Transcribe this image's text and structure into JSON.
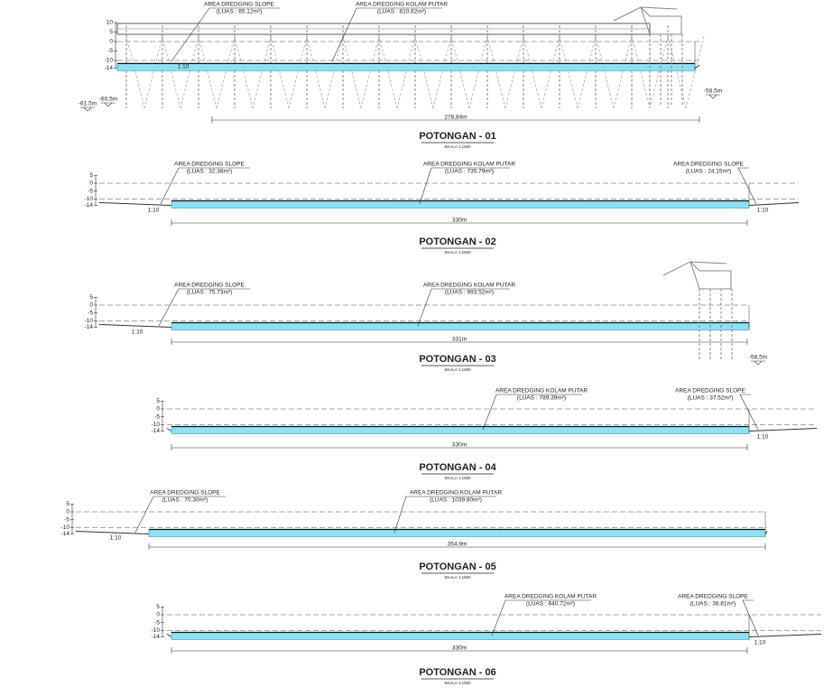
{
  "sections": [
    {
      "elevations": [
        "10",
        "5",
        "0",
        "-5",
        "-10",
        "-14"
      ],
      "annotations": [
        {
          "title": "AREA DREDGING SLOPE",
          "area": "(LUAS : 65.12m²)"
        },
        {
          "title": "AREA DREDGING KOLAM PUTAR",
          "area": "(LUAS : 810,62m²)"
        }
      ],
      "slopes": [
        "1:10"
      ],
      "depths": [
        "-61,5m",
        "-60,5m",
        "-58,5m"
      ],
      "dimension": "278,84m",
      "title": "POTONGAN - 01",
      "scale": "SKALA 1:1500"
    },
    {
      "elevations": [
        "5",
        "0",
        "-5",
        "-10",
        "-14"
      ],
      "annotations": [
        {
          "title": "AREA DREDGING SLOPE",
          "area": "(LUAS : 32.38m²)"
        },
        {
          "title": "AREA DREDGING KOLAM PUTAR",
          "area": "(LUAS : 735.79m²)"
        },
        {
          "title": "AREA DREDGING SLOPE",
          "area": "(LUAS : 24.15m²)"
        }
      ],
      "slopes": [
        "1:10",
        "1:10"
      ],
      "depths": [],
      "dimension": "330m",
      "title": "POTONGAN - 02",
      "scale": "SKALA 1:1500"
    },
    {
      "elevations": [
        "5",
        "0",
        "-5",
        "-10",
        "-14"
      ],
      "annotations": [
        {
          "title": "AREA DREDGING SLOPE",
          "area": "(LUAS : 75.73m²)"
        },
        {
          "title": "AREA DREDGING KOLAM PUTAR",
          "area": "(LUAS : 993.52m²)"
        }
      ],
      "slopes": [
        "1:10"
      ],
      "depths": [
        "-58,5m"
      ],
      "dimension": "331m",
      "title": "POTONGAN - 03",
      "scale": "SKALA 1:1500"
    },
    {
      "elevations": [
        "5",
        "0",
        "-5",
        "-10",
        "-14"
      ],
      "annotations": [
        {
          "title": "AREA DREDGING KOLAM PUTAR",
          "area": "(LUAS : 789.39m²)"
        },
        {
          "title": "AREA DREDGING SLOPE",
          "area": "(LUAS : 37.52m²)"
        }
      ],
      "slopes": [
        "1:10"
      ],
      "depths": [],
      "dimension": "330m",
      "title": "POTONGAN - 04",
      "scale": "SKALA 1:1500"
    },
    {
      "elevations": [
        "5",
        "0",
        "-5",
        "-10",
        "-14"
      ],
      "annotations": [
        {
          "title": "AREA DREDGING SLOPE",
          "area": "(LUAS : 70.30m²)"
        },
        {
          "title": "AREA DREDGING KOLAM PUTAR",
          "area": "(LUAS : 1039.80m²)"
        }
      ],
      "slopes": [
        "1:10"
      ],
      "depths": [],
      "dimension": "354,9m",
      "title": "POTONGAN - 05",
      "scale": "SKALA 1:1500"
    },
    {
      "elevations": [
        "5",
        "0",
        "-5",
        "-10",
        "-14"
      ],
      "annotations": [
        {
          "title": "AREA DREDGING KOLAM PUTAR",
          "area": "(LUAS : 640.72m²)"
        },
        {
          "title": "AREA DREDGING SLOPE",
          "area": "(LUAS : 38.81m²)"
        }
      ],
      "slopes": [
        "1:10"
      ],
      "depths": [],
      "dimension": "330m",
      "title": "POTONGAN - 06",
      "scale": "SKALA 1:1500"
    }
  ]
}
